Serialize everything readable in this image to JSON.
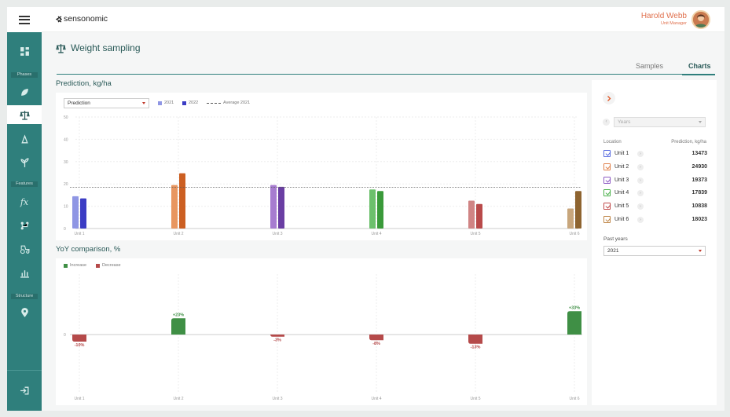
{
  "app": {
    "brand": "sensonomic"
  },
  "user": {
    "name": "Harold Webb",
    "role": "Unit Manager"
  },
  "sidebar": {
    "sections": {
      "phases": "Phases",
      "features": "Features",
      "structure": "Structure"
    }
  },
  "page": {
    "title": "Weight sampling"
  },
  "tabs": [
    {
      "label": "Samples"
    },
    {
      "label": "Charts"
    }
  ],
  "prediction": {
    "title": "Prediction, kg/ha",
    "select_value": "Prediction",
    "legend": {
      "s2021": "2021",
      "s2022": "2022",
      "avg": "Average 2021"
    }
  },
  "yoy": {
    "title": "YoY comparison, %",
    "legend": {
      "inc": "Increase",
      "dec": "Decrease"
    }
  },
  "chart_data": [
    {
      "type": "bar",
      "title": "Prediction, kg/ha",
      "categories": [
        "Unit 1",
        "Unit 2",
        "Unit 3",
        "Unit 4",
        "Unit 5",
        "Unit 6"
      ],
      "series": [
        {
          "name": "2021",
          "values": [
            14.5,
            19.5,
            19.5,
            17.5,
            12.5,
            9
          ]
        },
        {
          "name": "2022",
          "values": [
            13.5,
            24.8,
            18.7,
            16.8,
            11,
            16.8
          ]
        }
      ],
      "reference_line": {
        "name": "Average 2021",
        "value": 18.5
      },
      "yticks": [
        0,
        10,
        20,
        30,
        40,
        50
      ],
      "ylim": [
        0,
        50
      ],
      "colors": {
        "2021": [
          "#8f96e4",
          "#e89660",
          "#a77cd0",
          "#6cc06c",
          "#d08484",
          "#c8a67c"
        ],
        "2022": [
          "#3b3cc4",
          "#cc5f22",
          "#6a3ea3",
          "#3a9a3a",
          "#b94a4a",
          "#8e6430"
        ]
      }
    },
    {
      "type": "bar",
      "title": "YoY comparison, %",
      "categories": [
        "Unit 1",
        "Unit 2",
        "Unit 3",
        "Unit 4",
        "Unit 5",
        "Unit 6"
      ],
      "values": [
        -10,
        23,
        -3,
        -8,
        -13,
        33
      ],
      "labels": [
        "-10%",
        "+23%",
        "-3%",
        "-8%",
        "-13%",
        "+33%"
      ],
      "yticks": [
        0
      ],
      "colors": {
        "increase": "#3f8f45",
        "decrease": "#b54a4a"
      }
    }
  ],
  "panel": {
    "years_placeholder": "Years",
    "col_location": "Location",
    "col_prediction": "Prediction, kg/ha",
    "units": [
      {
        "name": "Unit 1",
        "value": "13473",
        "color": "#5b6ee0"
      },
      {
        "name": "Unit 2",
        "value": "24930",
        "color": "#e0804a"
      },
      {
        "name": "Unit 3",
        "value": "19373",
        "color": "#8e5cc4"
      },
      {
        "name": "Unit 4",
        "value": "17839",
        "color": "#4ab04a"
      },
      {
        "name": "Unit 5",
        "value": "10838",
        "color": "#c04a4a"
      },
      {
        "name": "Unit 6",
        "value": "18023",
        "color": "#c0884a"
      }
    ],
    "past_years_label": "Past years",
    "past_years_value": "2021"
  }
}
